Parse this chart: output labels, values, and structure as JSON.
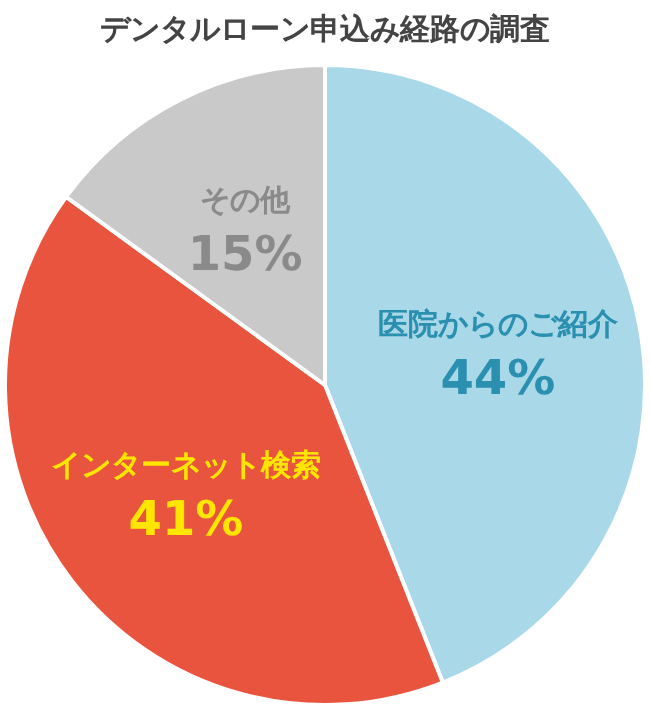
{
  "chart_data": {
    "type": "pie",
    "title": "デンタルローン申込み経路の調査",
    "categories": [
      "医院からのご紹介",
      "インターネット検索",
      "その他"
    ],
    "values": [
      44,
      41,
      15
    ],
    "colors": [
      "#a9d9e9",
      "#e8543e",
      "#c9c9c9"
    ],
    "value_labels": [
      "44%",
      "41%",
      "15%"
    ],
    "legend": false
  }
}
